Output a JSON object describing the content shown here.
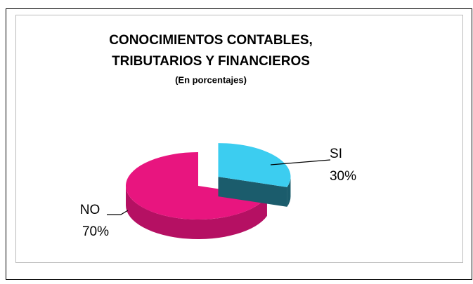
{
  "chart_data": {
    "type": "pie",
    "title": [
      "CONOCIMIENTOS CONTABLES,",
      "TRIBUTARIOS  Y FINANCIEROS"
    ],
    "subtitle": "(En porcentajes)",
    "categories": [
      "SI",
      "NO"
    ],
    "values": [
      30,
      70
    ],
    "value_labels": [
      "30%",
      "70%"
    ],
    "colors": [
      "#3ccdf0",
      "#e8157f"
    ]
  }
}
